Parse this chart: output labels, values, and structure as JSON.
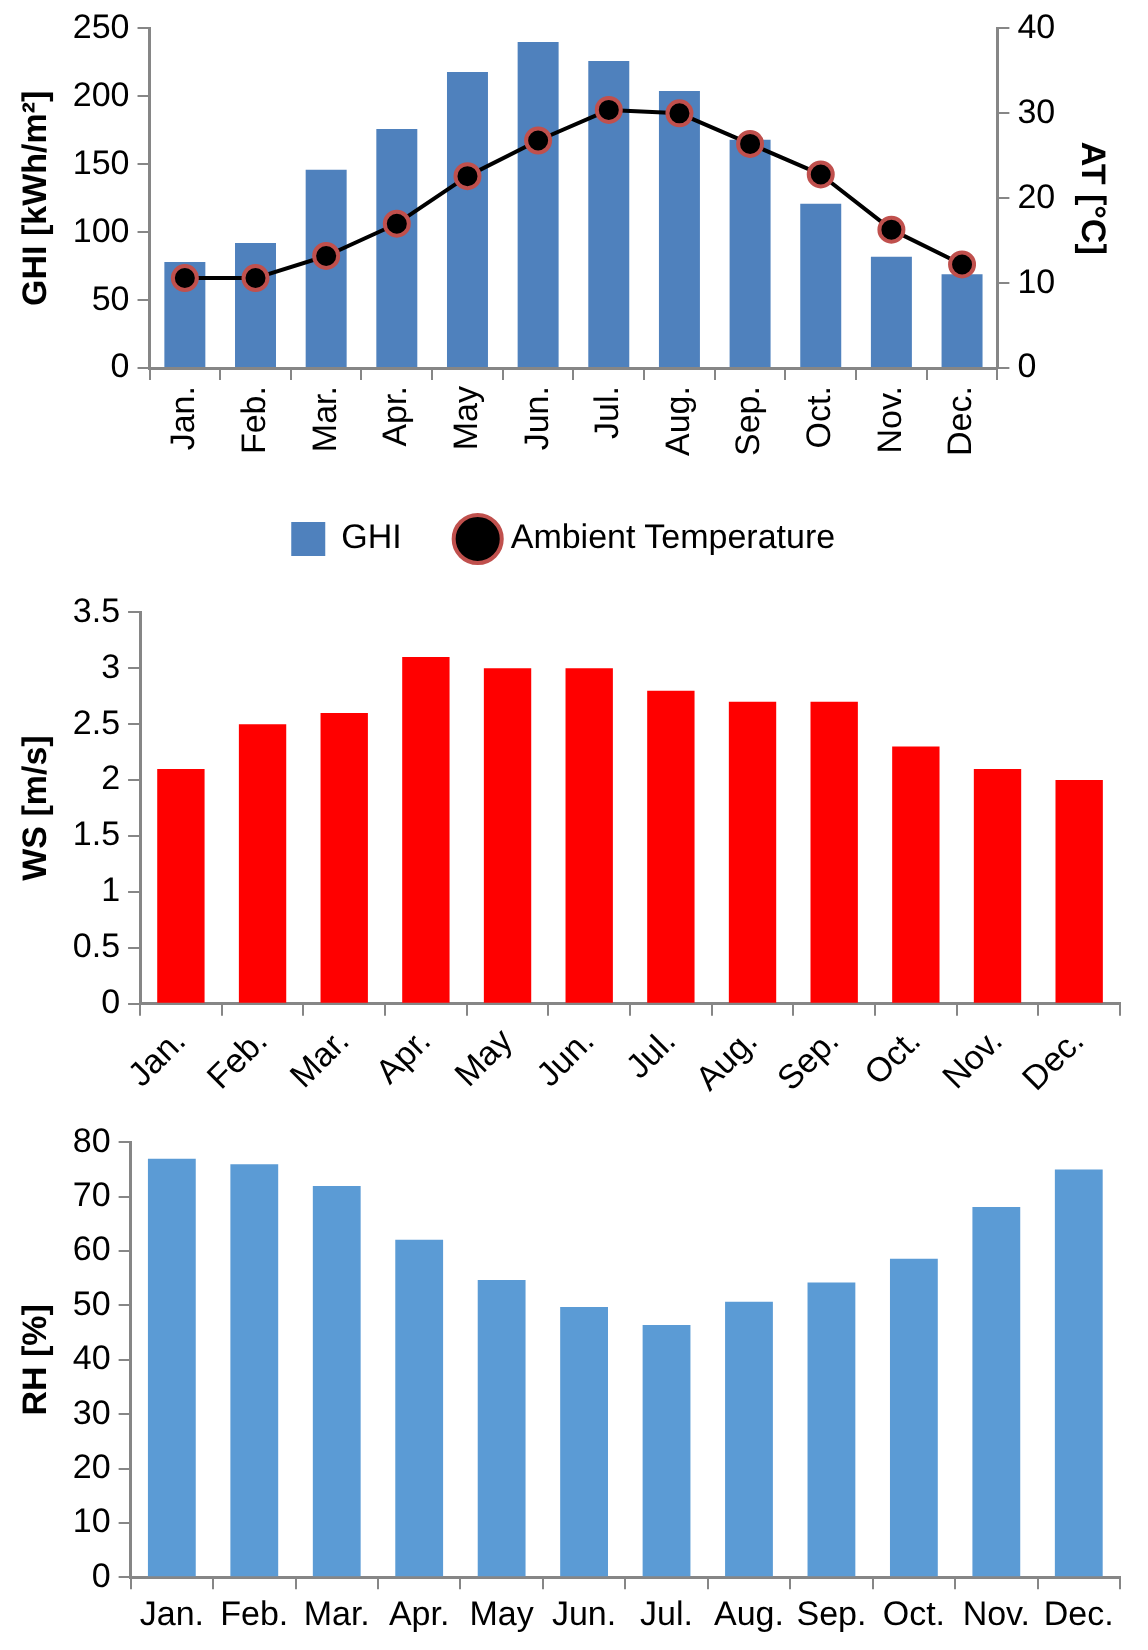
{
  "chart_data": [
    {
      "type": "bar",
      "categories": [
        "Jan.",
        "Feb.",
        "Mar.",
        "Apr.",
        "May",
        "Jun.",
        "Jul.",
        "Aug.",
        "Sep.",
        "Oct.",
        "Nov.",
        "Dec."
      ],
      "ylabel": "GHI [kWh/m²]",
      "y2label": "AT [°C]",
      "ylim": [
        0,
        250
      ],
      "yticks": [
        0,
        50,
        100,
        150,
        200,
        250
      ],
      "y2lim": [
        0,
        40
      ],
      "y2ticks": [
        0,
        10,
        20,
        30,
        40
      ],
      "legend": "bottom",
      "marker": "circle",
      "line_style": "solid",
      "series": [
        {
          "name": "GHI",
          "type": "bar",
          "color": "#4f81bd",
          "values": [
            78,
            92,
            146,
            176,
            218,
            240,
            226,
            204,
            168,
            121,
            82,
            69
          ]
        },
        {
          "name": "Ambient Temperature",
          "type": "line",
          "axis": "y2",
          "color": "#000000",
          "values": [
            10.6,
            10.6,
            13.2,
            17,
            22.6,
            26.8,
            30.4,
            30,
            26.4,
            22.8,
            16.3,
            12.2
          ]
        }
      ]
    },
    {
      "type": "bar",
      "categories": [
        "Jan.",
        "Feb.",
        "Mar.",
        "Apr.",
        "May",
        "Jun.",
        "Jul.",
        "Aug.",
        "Sep.",
        "Oct.",
        "Nov.",
        "Dec."
      ],
      "ylabel": "WS [m/s]",
      "ylim": [
        0,
        3.5
      ],
      "yticks": [
        0,
        0.5,
        1,
        1.5,
        2,
        2.5,
        3,
        3.5
      ],
      "color": "#ff0000",
      "values": [
        2.1,
        2.5,
        2.6,
        3.1,
        3,
        3,
        2.8,
        2.7,
        2.7,
        2.3,
        2.1,
        2.0
      ]
    },
    {
      "type": "bar",
      "categories": [
        "Jan.",
        "Feb.",
        "Mar.",
        "Apr.",
        "May",
        "Jun.",
        "Jul.",
        "Aug.",
        "Sep.",
        "Oct.",
        "Nov.",
        "Dec."
      ],
      "ylabel": "RH [%]",
      "ylim": [
        0,
        80
      ],
      "yticks": [
        0,
        10,
        20,
        30,
        40,
        50,
        60,
        70,
        80
      ],
      "color": "#5b9bd5",
      "values": [
        77,
        76,
        72,
        62.1,
        54.7,
        49.7,
        46.4,
        50.7,
        54.2,
        58.6,
        68.1,
        75
      ]
    }
  ]
}
